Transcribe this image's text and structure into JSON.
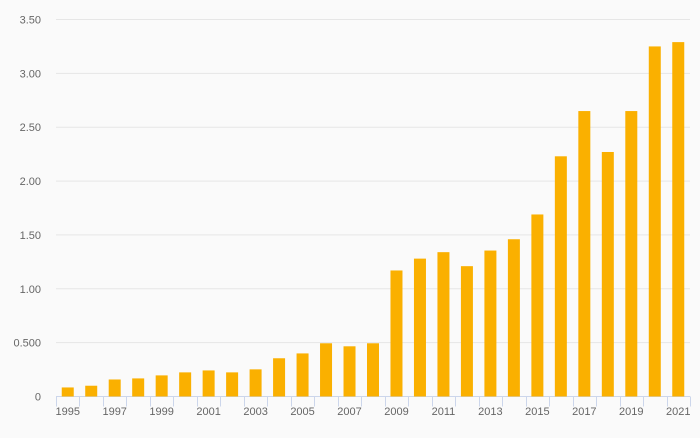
{
  "chart_data": {
    "type": "bar",
    "title": "",
    "xlabel": "",
    "ylabel": "",
    "categories": [
      "1995",
      "1996",
      "1997",
      "1998",
      "1999",
      "2000",
      "2001",
      "2002",
      "2003",
      "2004",
      "2005",
      "2006",
      "2007",
      "2008",
      "2009",
      "2010",
      "2011",
      "2012",
      "2013",
      "2014",
      "2015",
      "2016",
      "2017",
      "2018",
      "2019",
      "2020",
      "2021"
    ],
    "values": [
      0.084,
      0.1,
      0.158,
      0.168,
      0.196,
      0.224,
      0.242,
      0.224,
      0.252,
      0.355,
      0.4,
      0.494,
      0.466,
      0.494,
      1.17,
      1.28,
      1.34,
      1.21,
      1.355,
      1.46,
      1.69,
      2.23,
      2.65,
      2.27,
      2.65,
      3.25,
      3.29
    ],
    "ylim": [
      0,
      3.5
    ],
    "yticks": [
      0,
      0.5,
      1,
      1.5,
      2,
      2.5,
      3,
      3.5
    ],
    "ytick_labels": [
      "0",
      "0.500",
      "1.00",
      "1.50",
      "2.00",
      "2.50",
      "3.00",
      "3.50"
    ],
    "xtick_labels": [
      "1995",
      "1997",
      "1999",
      "2001",
      "2003",
      "2005",
      "2007",
      "2009",
      "2011",
      "2013",
      "2015",
      "2017",
      "2019",
      "2021"
    ],
    "grid": true,
    "bar_color": "#fab000",
    "grid_color": "#e6e6e6",
    "axis_color": "#ccd6eb"
  }
}
